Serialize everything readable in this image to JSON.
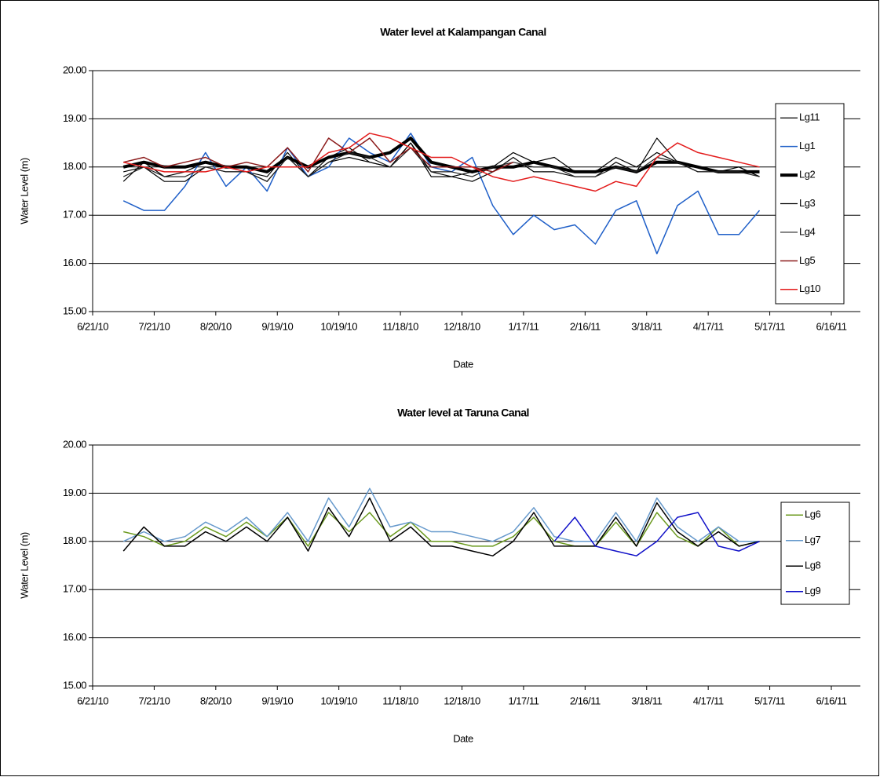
{
  "chart_data": [
    {
      "type": "line",
      "title": "Water level at Kalampangan Canal",
      "x_label": "Date",
      "y_label": "Water Level (m)",
      "x": [
        "7/6/10",
        "7/16/10",
        "7/26/10",
        "8/5/10",
        "8/15/10",
        "8/25/10",
        "9/4/10",
        "9/14/10",
        "9/24/10",
        "10/4/10",
        "10/14/10",
        "10/24/10",
        "11/3/10",
        "11/13/10",
        "11/23/10",
        "12/3/10",
        "12/13/10",
        "12/23/10",
        "1/2/11",
        "1/12/11",
        "1/22/11",
        "2/1/11",
        "2/11/11",
        "2/21/11",
        "3/3/11",
        "3/13/11",
        "3/23/11",
        "4/2/11",
        "4/12/11",
        "4/22/11",
        "5/2/11",
        "5/12/11"
      ],
      "xlim": [
        "6/21/10",
        "6/16/11"
      ],
      "xticks": [
        "6/21/10",
        "7/21/10",
        "8/20/10",
        "9/19/10",
        "10/19/10",
        "11/18/10",
        "12/18/10",
        "1/17/11",
        "2/16/11",
        "3/18/11",
        "4/17/11",
        "5/17/11",
        "6/16/11"
      ],
      "ylim": [
        15,
        20
      ],
      "yticks": [
        {
          "value": 15,
          "label": "15.00"
        },
        {
          "value": 16,
          "label": "16.00"
        },
        {
          "value": 17,
          "label": "17.00"
        },
        {
          "value": 18,
          "label": "18.00"
        },
        {
          "value": 19,
          "label": "19.00"
        },
        {
          "value": 20,
          "label": "20.00"
        }
      ],
      "grid": true,
      "legend": "right",
      "series": [
        {
          "name": "Lg11",
          "color": "#000000",
          "width": 1.2,
          "values": [
            17.7,
            18.1,
            17.8,
            17.9,
            18.1,
            18.0,
            17.9,
            17.8,
            18.3,
            17.8,
            18.2,
            18.4,
            18.1,
            18.0,
            18.5,
            17.9,
            17.8,
            17.9,
            18.0,
            18.3,
            18.1,
            18.2,
            17.9,
            17.9,
            18.2,
            18.0,
            18.3,
            18.1,
            18.0,
            18.0,
            18.0,
            17.8
          ]
        },
        {
          "name": "Lg1",
          "color": "#1f5fc8",
          "width": 1.5,
          "values": [
            17.3,
            17.1,
            17.1,
            17.6,
            18.3,
            17.6,
            18.0,
            17.5,
            18.4,
            17.8,
            18.0,
            18.6,
            18.3,
            18.1,
            18.7,
            18.0,
            17.9,
            18.2,
            17.2,
            16.6,
            17.0,
            16.7,
            16.8,
            16.4,
            17.1,
            17.3,
            16.2,
            17.2,
            17.5,
            16.6,
            16.6,
            17.1
          ]
        },
        {
          "name": "Lg2",
          "color": "#000000",
          "width": 4,
          "values": [
            18.0,
            18.1,
            18.0,
            18.0,
            18.1,
            18.0,
            18.0,
            17.9,
            18.2,
            18.0,
            18.2,
            18.3,
            18.2,
            18.3,
            18.6,
            18.1,
            18.0,
            17.9,
            18.0,
            18.0,
            18.1,
            18.0,
            17.9,
            17.9,
            18.0,
            17.9,
            18.1,
            18.1,
            18.0,
            17.9,
            17.9,
            17.9
          ]
        },
        {
          "name": "Lg3",
          "color": "#000000",
          "width": 1.2,
          "values": [
            17.9,
            18.0,
            17.7,
            17.7,
            18.0,
            17.9,
            17.9,
            17.7,
            18.2,
            17.8,
            18.1,
            18.2,
            18.1,
            18.0,
            18.5,
            17.8,
            17.8,
            17.7,
            17.9,
            18.2,
            17.9,
            17.9,
            17.8,
            17.8,
            18.1,
            17.9,
            18.6,
            18.1,
            17.9,
            17.9,
            18.0,
            17.8
          ]
        },
        {
          "name": "Lg4",
          "color": "#222222",
          "width": 1.2,
          "values": [
            17.8,
            18.0,
            17.8,
            17.8,
            18.0,
            17.9,
            17.9,
            17.7,
            18.2,
            17.8,
            18.1,
            18.3,
            18.2,
            18.0,
            18.4,
            17.9,
            17.9,
            17.8,
            18.0,
            18.1,
            18.0,
            18.0,
            17.8,
            17.8,
            18.0,
            17.9,
            18.2,
            18.1,
            17.9,
            17.9,
            17.9,
            17.8
          ]
        },
        {
          "name": "Lg5",
          "color": "#8b1a1a",
          "width": 1.5,
          "values": [
            18.1,
            18.2,
            18.0,
            18.1,
            18.2,
            18.0,
            18.1,
            18.0,
            18.4,
            17.9,
            18.6,
            18.3,
            18.6,
            18.1,
            18.4,
            18.0,
            18.0,
            18.0,
            17.9,
            18.1,
            null,
            null,
            null,
            null,
            null,
            null,
            null,
            null,
            null,
            null,
            null,
            null
          ]
        },
        {
          "name": "Lg10",
          "color": "#e31a1a",
          "width": 1.5,
          "values": [
            18.1,
            18.0,
            17.9,
            17.9,
            17.9,
            18.0,
            17.9,
            18.0,
            18.0,
            18.0,
            18.3,
            18.4,
            18.7,
            18.6,
            18.4,
            18.2,
            18.2,
            18.0,
            17.8,
            17.7,
            17.8,
            17.7,
            17.6,
            17.5,
            17.7,
            17.6,
            18.2,
            18.5,
            18.3,
            18.2,
            18.1,
            18.0
          ]
        }
      ]
    },
    {
      "type": "line",
      "title": "Water level at Taruna Canal",
      "x_label": "Date",
      "y_label": "Water Level (m)",
      "x": [
        "7/6/10",
        "7/16/10",
        "7/26/10",
        "8/5/10",
        "8/15/10",
        "8/25/10",
        "9/4/10",
        "9/14/10",
        "9/24/10",
        "10/4/10",
        "10/14/10",
        "10/24/10",
        "11/3/10",
        "11/13/10",
        "11/23/10",
        "12/3/10",
        "12/13/10",
        "12/23/10",
        "1/2/11",
        "1/12/11",
        "1/22/11",
        "2/1/11",
        "2/11/11",
        "2/21/11",
        "3/3/11",
        "3/13/11",
        "3/23/11",
        "4/2/11",
        "4/12/11",
        "4/22/11",
        "5/2/11",
        "5/12/11"
      ],
      "xlim": [
        "6/21/10",
        "6/16/11"
      ],
      "xticks": [
        "6/21/10",
        "7/21/10",
        "8/20/10",
        "9/19/10",
        "10/19/10",
        "11/18/10",
        "12/18/10",
        "1/17/11",
        "2/16/11",
        "3/18/11",
        "4/17/11",
        "5/17/11",
        "6/16/11"
      ],
      "ylim": [
        15,
        20
      ],
      "yticks": [
        {
          "value": 15,
          "label": "15.00"
        },
        {
          "value": 16,
          "label": "16.00"
        },
        {
          "value": 17,
          "label": "17.00"
        },
        {
          "value": 18,
          "label": "18.00"
        },
        {
          "value": 19,
          "label": "19.00"
        },
        {
          "value": 20,
          "label": "20.00"
        }
      ],
      "grid": true,
      "legend": "right",
      "series": [
        {
          "name": "Lg6",
          "color": "#6b9a1f",
          "width": 1.5,
          "values": [
            18.2,
            18.1,
            17.9,
            18.0,
            18.3,
            18.1,
            18.4,
            18.1,
            18.5,
            17.9,
            18.6,
            18.2,
            18.6,
            18.1,
            18.4,
            18.0,
            18.0,
            17.9,
            17.9,
            18.1,
            18.5,
            18.0,
            17.9,
            17.9,
            18.4,
            17.9,
            18.6,
            18.1,
            17.9,
            18.3,
            17.9,
            18.0
          ]
        },
        {
          "name": "Lg7",
          "color": "#6699cc",
          "width": 1.5,
          "values": [
            18.0,
            18.2,
            18.0,
            18.1,
            18.4,
            18.2,
            18.5,
            18.1,
            18.6,
            18.0,
            18.9,
            18.3,
            19.1,
            18.3,
            18.4,
            18.2,
            18.2,
            18.1,
            18.0,
            18.2,
            18.7,
            18.1,
            18.0,
            18.0,
            18.6,
            18.0,
            18.9,
            18.3,
            18.0,
            18.3,
            18.0,
            18.0
          ]
        },
        {
          "name": "Lg8",
          "color": "#000000",
          "width": 1.5,
          "values": [
            17.8,
            18.3,
            17.9,
            17.9,
            18.2,
            18.0,
            18.3,
            18.0,
            18.5,
            17.8,
            18.7,
            18.1,
            18.9,
            18.0,
            18.3,
            17.9,
            17.9,
            17.8,
            17.7,
            18.0,
            18.6,
            17.9,
            17.9,
            17.9,
            18.5,
            17.9,
            18.8,
            18.2,
            17.9,
            18.2,
            17.9,
            18.0
          ]
        },
        {
          "name": "Lg9",
          "color": "#1010c8",
          "width": 1.5,
          "values": [
            null,
            null,
            null,
            null,
            null,
            null,
            null,
            null,
            null,
            null,
            null,
            null,
            null,
            null,
            null,
            null,
            null,
            null,
            null,
            null,
            null,
            18.0,
            18.5,
            17.9,
            17.8,
            17.7,
            18.0,
            18.5,
            18.6,
            17.9,
            17.8,
            18.0
          ]
        }
      ]
    }
  ]
}
